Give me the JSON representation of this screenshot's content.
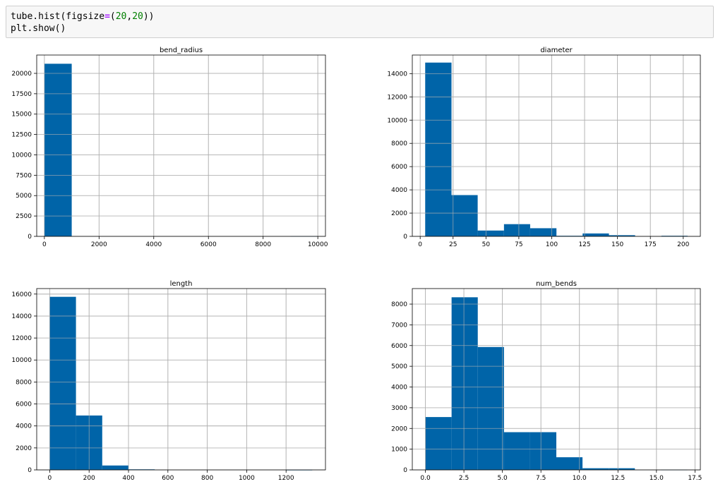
{
  "code_cell": {
    "line1": {
      "obj": "tube.hist(figsize",
      "eq": "=",
      "open": "(",
      "n1": "20",
      "comma": ",",
      "n2": "20",
      "close": "))"
    },
    "line2": "plt.show()"
  },
  "colors": {
    "bar": "#0064a8",
    "grid": "#b0b0b0",
    "axes": "#000000"
  },
  "chart_data": [
    {
      "type": "bar",
      "title": "bend_radius",
      "bins": [
        [
          0,
          1000
        ],
        [
          1000,
          2000
        ],
        [
          2000,
          3000
        ],
        [
          3000,
          4000
        ],
        [
          4000,
          5000
        ],
        [
          5000,
          6000
        ],
        [
          6000,
          7000
        ],
        [
          7000,
          8000
        ],
        [
          8000,
          9000
        ],
        [
          9000,
          10000
        ]
      ],
      "values": [
        21180,
        0,
        0,
        0,
        0,
        0,
        0,
        0,
        0,
        30
      ],
      "xlim": [
        -280,
        10280
      ],
      "ylim": [
        0,
        22250
      ],
      "xticks": [
        0,
        2000,
        4000,
        6000,
        8000,
        10000
      ],
      "xtick_labels": [
        "0",
        "2000",
        "4000",
        "6000",
        "8000",
        "10000"
      ],
      "yticks": [
        0,
        2500,
        5000,
        7500,
        10000,
        12500,
        15000,
        17500,
        20000
      ],
      "ytick_labels": [
        "0",
        "2500",
        "5000",
        "7500",
        "10000",
        "12500",
        "15000",
        "17500",
        "20000"
      ],
      "grid": true
    },
    {
      "type": "bar",
      "title": "diameter",
      "bins": [
        [
          3.8,
          23.8
        ],
        [
          23.8,
          43.7
        ],
        [
          43.7,
          63.7
        ],
        [
          63.7,
          83.6
        ],
        [
          83.6,
          103.6
        ],
        [
          103.6,
          123.5
        ],
        [
          123.5,
          143.5
        ],
        [
          143.5,
          163.4
        ],
        [
          163.4,
          183.4
        ],
        [
          183.4,
          203.3
        ]
      ],
      "values": [
        14950,
        3550,
        500,
        1050,
        700,
        50,
        250,
        100,
        0,
        50
      ],
      "xlim": [
        -6,
        213
      ],
      "ylim": [
        0,
        15600
      ],
      "xticks": [
        0,
        25,
        50,
        75,
        100,
        125,
        150,
        175,
        200
      ],
      "xtick_labels": [
        "0",
        "25",
        "50",
        "75",
        "100",
        "125",
        "150",
        "175",
        "200"
      ],
      "yticks": [
        0,
        2000,
        4000,
        6000,
        8000,
        10000,
        12000,
        14000
      ],
      "ytick_labels": [
        "0",
        "2000",
        "4000",
        "6000",
        "8000",
        "10000",
        "12000",
        "14000"
      ],
      "grid": true
    },
    {
      "type": "bar",
      "title": "length",
      "bins": [
        [
          0,
          133.3
        ],
        [
          133.3,
          266.6
        ],
        [
          266.6,
          399.9
        ],
        [
          399.9,
          533.2
        ],
        [
          533.2,
          666.5
        ],
        [
          666.5,
          799.8
        ],
        [
          799.8,
          933.1
        ],
        [
          933.1,
          1066.4
        ],
        [
          1066.4,
          1199.7
        ],
        [
          1199.7,
          1333
        ]
      ],
      "values": [
        15750,
        4950,
        400,
        50,
        0,
        0,
        0,
        0,
        0,
        10
      ],
      "xlim": [
        -66,
        1400
      ],
      "ylim": [
        0,
        16500
      ],
      "xticks": [
        0,
        200,
        400,
        600,
        800,
        1000,
        1200
      ],
      "xtick_labels": [
        "0",
        "200",
        "400",
        "600",
        "800",
        "1000",
        "1200"
      ],
      "yticks": [
        0,
        2000,
        4000,
        6000,
        8000,
        10000,
        12000,
        14000,
        16000
      ],
      "ytick_labels": [
        "0",
        "2000",
        "4000",
        "6000",
        "8000",
        "10000",
        "12000",
        "14000",
        "16000"
      ],
      "grid": true
    },
    {
      "type": "bar",
      "title": "num_bends",
      "bins": [
        [
          0,
          1.7
        ],
        [
          1.7,
          3.4
        ],
        [
          3.4,
          5.1
        ],
        [
          5.1,
          6.8
        ],
        [
          6.8,
          8.5
        ],
        [
          8.5,
          10.2
        ],
        [
          10.2,
          11.9
        ],
        [
          11.9,
          13.6
        ],
        [
          13.6,
          15.3
        ],
        [
          15.3,
          17
        ]
      ],
      "values": [
        2550,
        8330,
        5930,
        1820,
        1820,
        610,
        80,
        80,
        0,
        10
      ],
      "xlim": [
        -0.85,
        17.85
      ],
      "ylim": [
        0,
        8750
      ],
      "xticks": [
        0,
        2.5,
        5,
        7.5,
        10,
        12.5,
        15,
        17.5
      ],
      "xtick_labels": [
        "0.0",
        "2.5",
        "5.0",
        "7.5",
        "10.0",
        "12.5",
        "15.0",
        "17.5"
      ],
      "yticks": [
        0,
        1000,
        2000,
        3000,
        4000,
        5000,
        6000,
        7000,
        8000
      ],
      "ytick_labels": [
        "0",
        "1000",
        "2000",
        "3000",
        "4000",
        "5000",
        "6000",
        "7000",
        "8000"
      ],
      "grid": true
    }
  ]
}
